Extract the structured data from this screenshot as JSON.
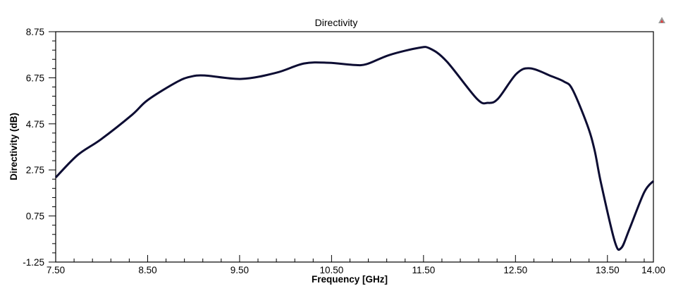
{
  "chart_data": {
    "type": "line",
    "title": "Directivity",
    "xlabel": "Frequency [GHz]",
    "ylabel": "Directivity (dB)",
    "xlim": [
      7.5,
      14.0
    ],
    "ylim": [
      -1.25,
      8.75
    ],
    "xticks": [
      "7.50",
      "8.50",
      "9.50",
      "10.50",
      "11.50",
      "12.50",
      "13.50",
      "14.00"
    ],
    "xtick_values": [
      7.5,
      8.5,
      9.5,
      10.5,
      11.5,
      12.5,
      13.5,
      14.0
    ],
    "yticks": [
      "8.75",
      "6.75",
      "4.75",
      "2.75",
      "0.75",
      "-1.25"
    ],
    "ytick_values": [
      8.75,
      6.75,
      4.75,
      2.75,
      0.75,
      -1.25
    ],
    "grid": false,
    "line_color": "#0d0d33",
    "series": [
      {
        "name": "Directivity",
        "x": [
          7.5,
          7.74,
          7.99,
          8.33,
          8.5,
          8.81,
          8.96,
          9.12,
          9.52,
          9.9,
          10.2,
          10.47,
          10.73,
          10.88,
          11.13,
          11.45,
          11.57,
          11.75,
          12.08,
          12.2,
          12.31,
          12.51,
          12.66,
          12.89,
          13.03,
          13.12,
          13.28,
          13.36,
          13.43,
          13.58,
          13.65,
          13.74,
          13.9,
          14.0
        ],
        "y": [
          2.42,
          3.4,
          4.07,
          5.14,
          5.78,
          6.55,
          6.79,
          6.85,
          6.7,
          6.97,
          7.37,
          7.4,
          7.31,
          7.34,
          7.74,
          8.05,
          8.02,
          7.47,
          5.84,
          5.66,
          5.84,
          6.92,
          7.16,
          6.82,
          6.58,
          6.24,
          4.71,
          3.61,
          2.18,
          -0.36,
          -0.64,
          0.19,
          1.78,
          2.27
        ]
      }
    ]
  },
  "icons": {
    "corner": "warning-triangle-icon"
  }
}
